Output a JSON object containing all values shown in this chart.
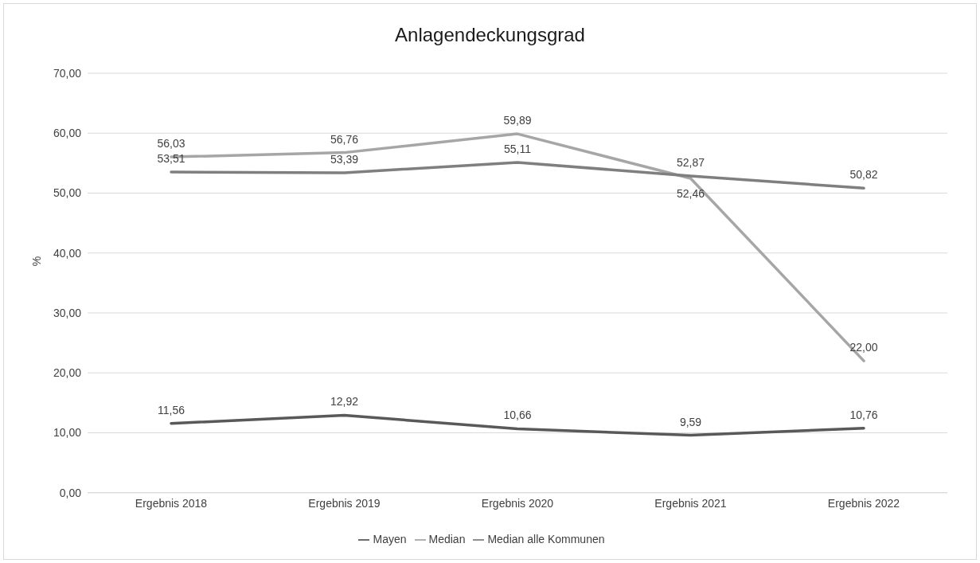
{
  "chart_data": {
    "type": "line",
    "title": "Anlagendeckungsgrad",
    "ylabel": "%",
    "categories": [
      "Ergebnis 2018",
      "Ergebnis 2019",
      "Ergebnis 2020",
      "Ergebnis 2021",
      "Ergebnis 2022"
    ],
    "series": [
      {
        "name": "Mayen",
        "color": "#595959",
        "values": [
          11.56,
          12.92,
          10.66,
          9.59,
          10.76
        ],
        "value_labels": [
          "11,56",
          "12,92",
          "10,66",
          "9,59",
          "10,76"
        ]
      },
      {
        "name": "Median",
        "color": "#a6a6a6",
        "values": [
          56.03,
          56.76,
          59.89,
          52.46,
          22.0
        ],
        "value_labels": [
          "56,03",
          "56,76",
          "59,89",
          "52,46",
          "22,00"
        ]
      },
      {
        "name": "Median alle Kommunen",
        "color": "#7f7f7f",
        "values": [
          53.51,
          53.39,
          55.11,
          52.87,
          50.82
        ],
        "value_labels": [
          "53,51",
          "53,39",
          "55,11",
          "52,87",
          "50,82"
        ]
      }
    ],
    "ylim": [
      0,
      70
    ],
    "yticks": [
      {
        "value": 0,
        "label": "0,00"
      },
      {
        "value": 10,
        "label": "10,00"
      },
      {
        "value": 20,
        "label": "20,00"
      },
      {
        "value": 30,
        "label": "30,00"
      },
      {
        "value": 40,
        "label": "40,00"
      },
      {
        "value": 50,
        "label": "50,00"
      },
      {
        "value": 60,
        "label": "60,00"
      },
      {
        "value": 70,
        "label": "70,00"
      }
    ],
    "grid": "y",
    "legend": "bottom",
    "marker": "none",
    "line_style": "solid"
  }
}
